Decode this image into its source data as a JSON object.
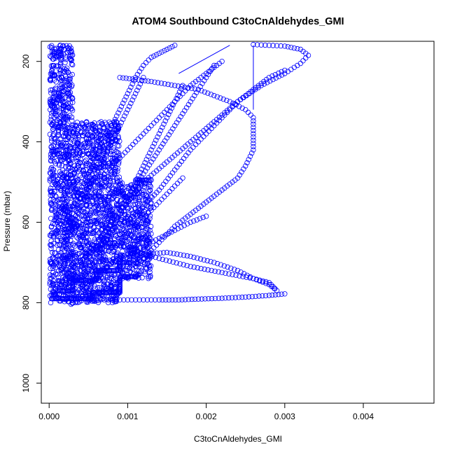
{
  "chart_data": {
    "type": "scatter",
    "title": "ATOM4 Southbound C3toCnAldehydes_GMI",
    "xlabel": "C3toCnAldehydes_GMI",
    "ylabel": "Pressure (mbar)",
    "xlim": [
      -0.0001,
      0.0049
    ],
    "ylim": [
      1050,
      150
    ],
    "y_reversed": true,
    "x_ticks": [
      0.0,
      0.001,
      0.002,
      0.003,
      0.004
    ],
    "x_tick_labels": [
      "0.000",
      "0.001",
      "0.002",
      "0.003",
      "0.004"
    ],
    "y_ticks": [
      200,
      400,
      600,
      800,
      1000
    ],
    "y_tick_labels": [
      "200",
      "400",
      "600",
      "800",
      "1000"
    ],
    "grid": false,
    "marker": "open-circle",
    "color": "#0000ff",
    "series": [
      {
        "x": [
          2e-05,
          5e-05,
          0.0001,
          0.0002,
          0.0004,
          0.0006,
          0.0009,
          0.0012,
          0.0015,
          0.0018,
          0.0021,
          0.0024,
          0.0026,
          0.0028,
          0.0029,
          0.00285,
          0.0028,
          0.0026,
          0.0022,
          0.0018,
          0.0014,
          0.001,
          0.0007,
          0.0005,
          0.0004,
          0.0003,
          0.00022,
          0.00018,
          0.00015,
          0.00014
        ],
        "y": [
          800,
          780,
          760,
          740,
          720,
          700,
          690,
          680,
          675,
          685,
          700,
          720,
          740,
          755,
          770,
          760,
          750,
          740,
          725,
          710,
          690,
          665,
          640,
          600,
          550,
          500,
          420,
          320,
          230,
          160
        ]
      },
      {
        "x": [
          0.0005,
          0.0006,
          0.0008,
          0.001,
          0.0012,
          0.0014,
          0.00165,
          0.0019,
          0.0022,
          0.0025,
          0.0028,
          0.003
        ],
        "y": [
          793,
          793,
          793,
          793,
          793,
          793,
          793,
          791,
          789,
          786,
          782,
          778
        ]
      },
      {
        "x": [
          0.0006,
          0.0008,
          0.001,
          0.0012,
          0.0014,
          0.0016,
          0.0018,
          0.002,
          0.0022,
          0.0024,
          0.0025,
          0.0026,
          0.0026,
          0.0026,
          0.0025,
          0.0023,
          0.0021,
          0.0019,
          0.0016,
          0.0013,
          0.0011,
          0.0009
        ],
        "y": [
          780,
          760,
          730,
          690,
          650,
          610,
          580,
          550,
          520,
          490,
          460,
          420,
          380,
          340,
          320,
          300,
          285,
          270,
          260,
          250,
          245,
          240
        ]
      },
      {
        "x": [
          3e-05,
          0.0001,
          0.0002,
          0.0004,
          0.0006,
          0.0008,
          0.001,
          0.0012,
          0.0015,
          0.0018,
          0.0021,
          0.0024,
          0.0027,
          0.003,
          0.0032,
          0.0033,
          0.0032,
          0.003,
          0.0028,
          0.0026
        ],
        "y": [
          780,
          760,
          740,
          700,
          650,
          600,
          550,
          500,
          450,
          400,
          350,
          300,
          260,
          230,
          205,
          185,
          170,
          162,
          160,
          158
        ]
      },
      {
        "x": [
          0.0002,
          0.0003,
          0.0004,
          0.0005,
          0.0006,
          0.0007,
          0.0008,
          0.0009,
          0.001,
          0.0011,
          0.0012,
          0.0013,
          0.0014,
          0.0015,
          0.0016,
          0.0017
        ],
        "y": [
          760,
          740,
          720,
          700,
          680,
          650,
          620,
          580,
          540,
          500,
          460,
          420,
          380,
          340,
          300,
          260
        ]
      },
      {
        "x": [
          0.0003,
          0.0005,
          0.0008,
          0.0011,
          0.0014,
          0.0016,
          0.0018,
          0.002,
          0.0022,
          0.0024,
          0.0026,
          0.0028,
          0.003
        ],
        "y": [
          720,
          680,
          630,
          580,
          520,
          470,
          420,
          380,
          340,
          300,
          270,
          240,
          222
        ]
      },
      {
        "x": [
          0.0001,
          0.0002,
          0.0003,
          0.0004,
          0.0005,
          0.0006,
          0.0007,
          0.0008,
          0.0009,
          0.001,
          0.0011,
          0.0012
        ],
        "y": [
          700,
          650,
          600,
          560,
          520,
          480,
          440,
          400,
          360,
          320,
          280,
          240
        ]
      },
      {
        "x": [
          0.0001,
          0.0002,
          0.0004,
          0.0006,
          0.0008,
          0.001,
          0.0012,
          0.0014,
          0.0016,
          0.0018,
          0.002,
          0.0022
        ],
        "y": [
          620,
          580,
          540,
          500,
          460,
          420,
          380,
          340,
          300,
          260,
          230,
          200
        ]
      },
      {
        "x": [
          0.0008,
          0.0009,
          0.001,
          0.0011,
          0.0012,
          0.0013,
          0.0014,
          0.0015,
          0.0016,
          0.0017,
          0.0018,
          0.0019,
          0.002,
          0.0021
        ],
        "y": [
          595,
          570,
          540,
          510,
          480,
          450,
          420,
          390,
          360,
          330,
          300,
          270,
          240,
          210
        ]
      },
      {
        "x": [
          0.0012,
          0.0013,
          0.0014,
          0.0015,
          0.0016,
          0.0017
        ],
        "y": [
          590,
          570,
          550,
          530,
          510,
          490
        ]
      },
      {
        "x": [
          0.0003,
          0.0004,
          0.0006,
          0.0008,
          0.001,
          0.0012,
          0.0014,
          0.0016,
          0.0018,
          0.002
        ],
        "y": [
          800,
          760,
          730,
          700,
          680,
          660,
          640,
          620,
          600,
          585
        ]
      },
      {
        "x": [
          0.0002,
          0.0003,
          0.0004,
          0.0005,
          0.0006,
          0.0007,
          0.0008,
          0.0009,
          0.001,
          0.0011,
          0.0012,
          0.0013,
          0.0014,
          0.0015,
          0.0016
        ],
        "y": [
          600,
          560,
          520,
          480,
          440,
          400,
          360,
          320,
          280,
          240,
          210,
          190,
          180,
          170,
          160
        ]
      }
    ],
    "dense_regions": [
      {
        "x_range": [
          1e-05,
          0.0003
        ],
        "y_range": [
          160,
          805
        ]
      },
      {
        "x_range": [
          0.0003,
          0.0009
        ],
        "y_range": [
          350,
          800
        ]
      },
      {
        "x_range": [
          0.0009,
          0.0013
        ],
        "y_range": [
          500,
          740
        ]
      }
    ],
    "line_segments": [
      {
        "x": [
          0.00165,
          0.0023
        ],
        "y": [
          230,
          160
        ]
      },
      {
        "x": [
          0.0026,
          0.0026
        ],
        "y": [
          160,
          320
        ]
      }
    ],
    "step_traces": [
      {
        "x": [
          3e-05,
          0.00055,
          0.00055,
          0.0009,
          0.0009,
          0.0011
        ],
        "y": [
          790,
          790,
          775,
          775,
          735,
          735
        ]
      },
      {
        "x": [
          0.0001,
          0.0003,
          0.0003,
          0.0006,
          0.0006,
          0.0009,
          0.0009,
          0.00105
        ],
        "y": [
          770,
          770,
          745,
          745,
          720,
          720,
          700,
          700
        ]
      },
      {
        "x": [
          0.0011,
          0.0013
        ],
        "y": [
          495,
          495
        ]
      }
    ]
  }
}
